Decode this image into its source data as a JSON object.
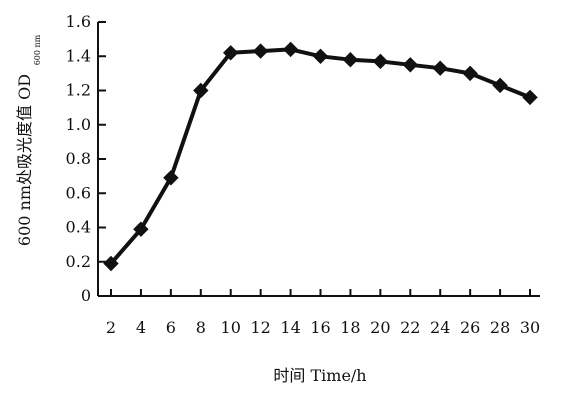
{
  "chart_data": {
    "type": "line",
    "xlabel": "时间 Time/h",
    "ylabel": "600 nm处吸光度值 OD",
    "ylabel_subscript": "600 nm",
    "xlim": [
      2,
      30
    ],
    "ylim": [
      0,
      1.6
    ],
    "x_ticks": [
      2,
      4,
      6,
      8,
      10,
      12,
      14,
      16,
      18,
      20,
      22,
      24,
      26,
      28,
      30
    ],
    "y_ticks": [
      "0",
      "0.2",
      "0.4",
      "0.6",
      "0.8",
      "1.0",
      "1.2",
      "1.4",
      "1.6"
    ],
    "grid": false,
    "series": [
      {
        "marker": "diamond",
        "color": "#111111",
        "x": [
          2,
          4,
          6,
          8,
          10,
          12,
          14,
          16,
          18,
          20,
          22,
          24,
          26,
          28,
          30
        ],
        "y": [
          0.19,
          0.39,
          0.69,
          1.2,
          1.42,
          1.43,
          1.44,
          1.4,
          1.38,
          1.37,
          1.35,
          1.33,
          1.3,
          1.23,
          1.16
        ]
      }
    ]
  }
}
